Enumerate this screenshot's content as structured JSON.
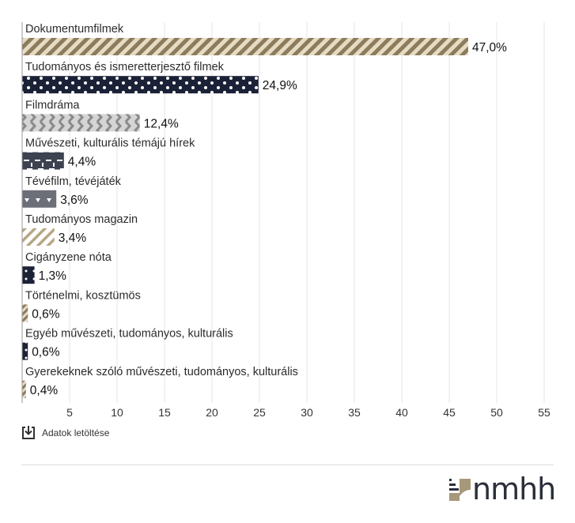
{
  "chart_data": {
    "type": "bar",
    "orientation": "horizontal",
    "categories": [
      "Dokumentumfilmek",
      "Tudományos és ismeretterjesztő filmek",
      "Filmdráma",
      "Művészeti, kulturális témájú hírek",
      "Tévéfilm, tévéjáték",
      "Tudományos magazin",
      "Cigányzene nóta",
      "Történelmi, kosztümös",
      "Egyéb művészeti, tudományos, kulturális",
      "Gyerekeknek szóló művészeti, tudományos, kulturális"
    ],
    "values": [
      47.0,
      24.9,
      12.4,
      4.4,
      3.6,
      3.4,
      1.3,
      0.6,
      0.6,
      0.4
    ],
    "value_labels": [
      "47,0%",
      "24,9%",
      "12,4%",
      "4,4%",
      "3,6%",
      "3,4%",
      "1,3%",
      "0,6%",
      "0,6%",
      "0,4%"
    ],
    "xlim": [
      0,
      55
    ],
    "x_ticks": [
      5,
      10,
      15,
      20,
      25,
      30,
      35,
      40,
      45,
      50,
      55
    ],
    "grid": true,
    "patterns": [
      "diagonal-stripes",
      "dots",
      "zigzag",
      "dashes",
      "triangles",
      "diagonal-stripes",
      "dots",
      "diagonal-stripes",
      "dots",
      "diagonal-stripes"
    ],
    "colors": [
      "#a8987a",
      "#1b2136",
      "#a7a7a7",
      "#3d4250",
      "#6c6f78",
      "#c7b89a",
      "#1b2136",
      "#a8987a",
      "#2a2f3f",
      "#a8987a"
    ],
    "title": "",
    "xlabel": "",
    "ylabel": ""
  },
  "download": {
    "label": "Adatok letöltése",
    "icon": "download-icon"
  },
  "logo": {
    "text": "nmhh",
    "icon": "nmhh-logo-mark"
  }
}
